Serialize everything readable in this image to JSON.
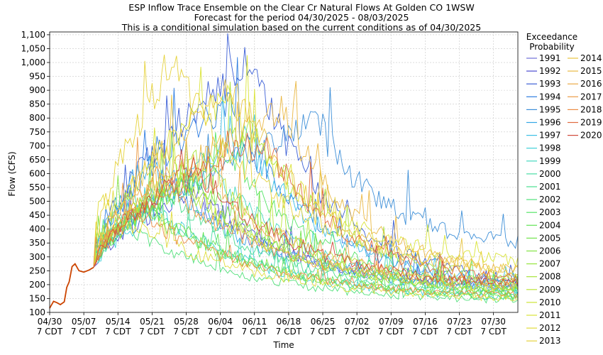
{
  "chart_data": {
    "type": "line",
    "title_lines": [
      "ESP Inflow Trace Ensemble on the Clear Cr Natural Flows At Golden CO 1WSW",
      "Forecast for the period 04/30/2025 - 08/03/2025",
      "This is a conditional simulation based on the current conditions as of 04/30/2025"
    ],
    "xlabel": "Time",
    "ylabel": "Flow (CFS)",
    "legend_title_lines": [
      "Exceedance",
      "Probability"
    ],
    "legend_placement": "right",
    "ylim": [
      100,
      1110
    ],
    "yticks": [
      100,
      150,
      200,
      250,
      300,
      350,
      400,
      450,
      500,
      550,
      600,
      650,
      700,
      750,
      800,
      850,
      900,
      950,
      1000,
      1050,
      1100
    ],
    "ytick_labels": [
      "100",
      "150",
      "200",
      "250",
      "300",
      "350",
      "400",
      "450",
      "500",
      "550",
      "600",
      "650",
      "700",
      "750",
      "800",
      "850",
      "900",
      "950",
      "1,000",
      "1,050",
      "1,100"
    ],
    "xlim_days": [
      0,
      96
    ],
    "xticks": [
      {
        "day": 0,
        "label1": "04/30",
        "label2": "7 CDT"
      },
      {
        "day": 7,
        "label1": "05/07",
        "label2": "7 CDT"
      },
      {
        "day": 14,
        "label1": "05/14",
        "label2": "7 CDT"
      },
      {
        "day": 21,
        "label1": "05/21",
        "label2": "7 CDT"
      },
      {
        "day": 28,
        "label1": "05/28",
        "label2": "7 CDT"
      },
      {
        "day": 35,
        "label1": "06/04",
        "label2": "7 CDT"
      },
      {
        "day": 42,
        "label1": "06/11",
        "label2": "7 CDT"
      },
      {
        "day": 49,
        "label1": "06/18",
        "label2": "7 CDT"
      },
      {
        "day": 56,
        "label1": "06/25",
        "label2": "7 CDT"
      },
      {
        "day": 63,
        "label1": "07/02",
        "label2": "7 CDT"
      },
      {
        "day": 70,
        "label1": "07/09",
        "label2": "7 CDT"
      },
      {
        "day": 77,
        "label1": "07/16",
        "label2": "7 CDT"
      },
      {
        "day": 84,
        "label1": "07/23",
        "label2": "7 CDT"
      },
      {
        "day": 91,
        "label1": "07/30",
        "label2": "7 CDT"
      }
    ],
    "grid": true,
    "observed": {
      "color": "#cc4400",
      "points": [
        [
          0,
          115
        ],
        [
          0.8,
          140
        ],
        [
          1.5,
          135
        ],
        [
          2.2,
          128
        ],
        [
          3,
          138
        ],
        [
          3.5,
          190
        ],
        [
          4,
          210
        ],
        [
          4.6,
          265
        ],
        [
          5.2,
          275
        ],
        [
          6,
          250
        ],
        [
          7,
          245
        ],
        [
          8,
          252
        ],
        [
          9,
          262
        ]
      ]
    },
    "series": [
      {
        "name": "1991",
        "color": "#6f6fd8",
        "peak_day": 26,
        "peak": 560,
        "end": 180,
        "rise_day": 8
      },
      {
        "name": "1992",
        "color": "#4b4bd0",
        "peak_day": 30,
        "peak": 540,
        "end": 175,
        "rise_day": 9
      },
      {
        "name": "1993",
        "color": "#3c5fd6",
        "peak_day": 41,
        "peak": 1000,
        "end": 185,
        "rise_day": 10
      },
      {
        "name": "1994",
        "color": "#2f7ee0",
        "peak_day": 36,
        "peak": 860,
        "end": 170,
        "rise_day": 8
      },
      {
        "name": "1995",
        "color": "#3d8fd8",
        "peak_day": 55,
        "peak": 780,
        "end": 340,
        "rise_day": 11
      },
      {
        "name": "1996",
        "color": "#34a6e6",
        "peak_day": 20,
        "peak": 640,
        "end": 160,
        "rise_day": 8
      },
      {
        "name": "1997",
        "color": "#3bbfe6",
        "peak_day": 40,
        "peak": 720,
        "end": 190,
        "rise_day": 9
      },
      {
        "name": "1998",
        "color": "#3fd0d8",
        "peak_day": 22,
        "peak": 460,
        "end": 140,
        "rise_day": 8
      },
      {
        "name": "1999",
        "color": "#45d8c0",
        "peak_day": 34,
        "peak": 600,
        "end": 165,
        "rise_day": 10
      },
      {
        "name": "2000",
        "color": "#48dca4",
        "peak_day": 18,
        "peak": 500,
        "end": 150,
        "rise_day": 8
      },
      {
        "name": "2001",
        "color": "#4ade90",
        "peak_day": 24,
        "peak": 540,
        "end": 155,
        "rise_day": 9
      },
      {
        "name": "2002",
        "color": "#50e07a",
        "peak_day": 14,
        "peak": 420,
        "end": 130,
        "rise_day": 8
      },
      {
        "name": "2003",
        "color": "#56e468",
        "peak_day": 38,
        "peak": 640,
        "end": 175,
        "rise_day": 10
      },
      {
        "name": "2004",
        "color": "#62e456",
        "peak_day": 20,
        "peak": 480,
        "end": 145,
        "rise_day": 8
      },
      {
        "name": "2005",
        "color": "#72e44c",
        "peak_day": 30,
        "peak": 580,
        "end": 160,
        "rise_day": 9
      },
      {
        "name": "2006",
        "color": "#84e444",
        "peak_day": 16,
        "peak": 520,
        "end": 140,
        "rise_day": 8
      },
      {
        "name": "2007",
        "color": "#96e43e",
        "peak_day": 28,
        "peak": 560,
        "end": 165,
        "rise_day": 9
      },
      {
        "name": "2008",
        "color": "#a8e43a",
        "peak_day": 42,
        "peak": 760,
        "end": 200,
        "rise_day": 10
      },
      {
        "name": "2009",
        "color": "#bae438",
        "peak_day": 32,
        "peak": 620,
        "end": 180,
        "rise_day": 9
      },
      {
        "name": "2010",
        "color": "#cce436",
        "peak_day": 26,
        "peak": 580,
        "end": 170,
        "rise_day": 8
      },
      {
        "name": "2011",
        "color": "#dae438",
        "peak_day": 36,
        "peak": 880,
        "end": 260,
        "rise_day": 10
      },
      {
        "name": "2012",
        "color": "#e0dc3a",
        "peak_day": 10,
        "peak": 500,
        "end": 135,
        "rise_day": 8
      },
      {
        "name": "2013",
        "color": "#e6d23c",
        "peak_day": 25,
        "peak": 1000,
        "end": 220,
        "rise_day": 9
      },
      {
        "name": "2014",
        "color": "#e8c440",
        "peak_day": 38,
        "peak": 900,
        "end": 210,
        "rise_day": 10
      },
      {
        "name": "2015",
        "color": "#eab844",
        "peak_day": 48,
        "peak": 820,
        "end": 230,
        "rise_day": 11
      },
      {
        "name": "2016",
        "color": "#ecaa46",
        "peak_day": 28,
        "peak": 640,
        "end": 190,
        "rise_day": 9
      },
      {
        "name": "2017",
        "color": "#ec9c46",
        "peak_day": 22,
        "peak": 600,
        "end": 175,
        "rise_day": 8
      },
      {
        "name": "2018",
        "color": "#ec8c44",
        "peak_day": 18,
        "peak": 460,
        "end": 150,
        "rise_day": 8
      },
      {
        "name": "2019",
        "color": "#e06a40",
        "peak_day": 44,
        "peak": 720,
        "end": 200,
        "rise_day": 10
      },
      {
        "name": "2020",
        "color": "#d04a3a",
        "peak_day": 30,
        "peak": 620,
        "end": 185,
        "rise_day": 9
      }
    ]
  }
}
